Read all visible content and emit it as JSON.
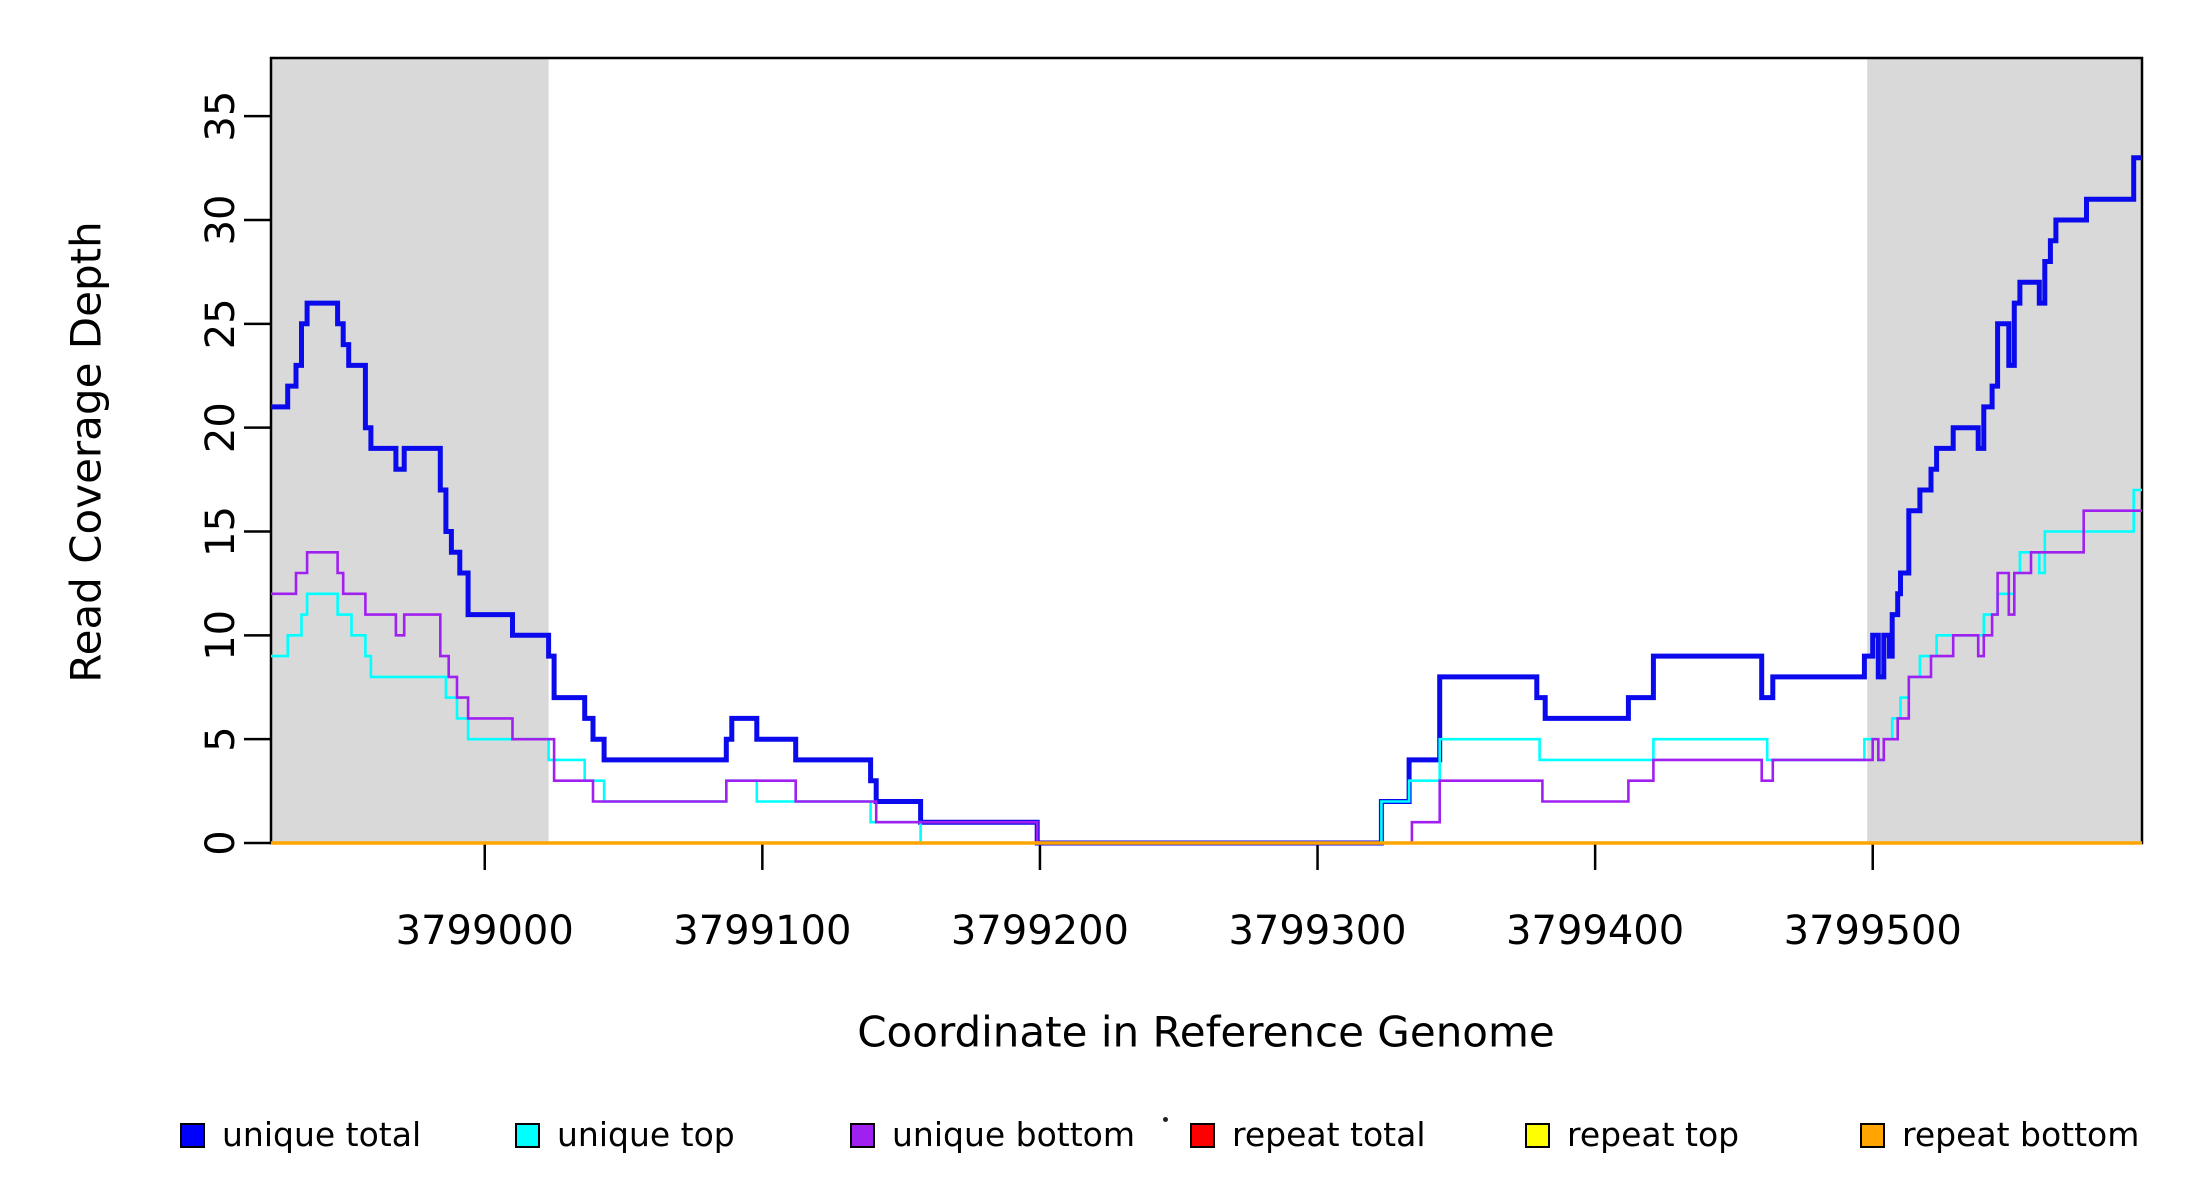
{
  "colors": {
    "background": "#FFFFFF",
    "shaded_region": "#D9D9D9",
    "axis": "#000000"
  },
  "chart_data": {
    "type": "line",
    "subtype": "step",
    "title": "",
    "xlabel": "Coordinate in Reference Genome",
    "ylabel": "Read Coverage Depth",
    "xlim": [
      3798923,
      3799597
    ],
    "ylim": [
      0,
      37.8
    ],
    "grid": false,
    "legend_position": "bottom",
    "x_ticks": [
      {
        "value": 3799000,
        "label": "3799000"
      },
      {
        "value": 3799100,
        "label": "3799100"
      },
      {
        "value": 3799200,
        "label": "3799200"
      },
      {
        "value": 3799300,
        "label": "3799300"
      },
      {
        "value": 3799400,
        "label": "3799400"
      },
      {
        "value": 3799500,
        "label": "3799500"
      }
    ],
    "y_ticks": [
      {
        "value": 0,
        "label": "0"
      },
      {
        "value": 5,
        "label": "5"
      },
      {
        "value": 10,
        "label": "10"
      },
      {
        "value": 15,
        "label": "15"
      },
      {
        "value": 20,
        "label": "20"
      },
      {
        "value": 25,
        "label": "25"
      },
      {
        "value": 30,
        "label": "30"
      },
      {
        "value": 35,
        "label": "35"
      }
    ],
    "shaded_regions": [
      {
        "x0": 3798923,
        "x1": 3799023
      },
      {
        "x0": 3799498,
        "x1": 3799597
      }
    ],
    "series": [
      {
        "name": "unique total",
        "color": "#0A0AEC",
        "line_width": 5,
        "points": [
          [
            3798923,
            21
          ],
          [
            3798929,
            22
          ],
          [
            3798932,
            23
          ],
          [
            3798934,
            25
          ],
          [
            3798936,
            26
          ],
          [
            3798947,
            25
          ],
          [
            3798949,
            24
          ],
          [
            3798951,
            23
          ],
          [
            3798957,
            20
          ],
          [
            3798959,
            19
          ],
          [
            3798968,
            18
          ],
          [
            3798971,
            19
          ],
          [
            3798984,
            17
          ],
          [
            3798986,
            15
          ],
          [
            3798988,
            14
          ],
          [
            3798991,
            13
          ],
          [
            3798994,
            11
          ],
          [
            3799010,
            10
          ],
          [
            3799023,
            9
          ],
          [
            3799025,
            7
          ],
          [
            3799036,
            6
          ],
          [
            3799039,
            5
          ],
          [
            3799043,
            4
          ],
          [
            3799087,
            5
          ],
          [
            3799089,
            6
          ],
          [
            3799098,
            5
          ],
          [
            3799112,
            4
          ],
          [
            3799139,
            3
          ],
          [
            3799141,
            2
          ],
          [
            3799157,
            1
          ],
          [
            3799199,
            0
          ],
          [
            3799323,
            2
          ],
          [
            3799333,
            4
          ],
          [
            3799344,
            8
          ],
          [
            3799379,
            7
          ],
          [
            3799382,
            6
          ],
          [
            3799412,
            7
          ],
          [
            3799421,
            9
          ],
          [
            3799460,
            7
          ],
          [
            3799464,
            8
          ],
          [
            3799497,
            9
          ],
          [
            3799500,
            10
          ],
          [
            3799502,
            8
          ],
          [
            3799504,
            10
          ],
          [
            3799506,
            9
          ],
          [
            3799507,
            11
          ],
          [
            3799509,
            12
          ],
          [
            3799510,
            13
          ],
          [
            3799513,
            16
          ],
          [
            3799517,
            17
          ],
          [
            3799521,
            18
          ],
          [
            3799523,
            19
          ],
          [
            3799529,
            20
          ],
          [
            3799538,
            19
          ],
          [
            3799540,
            21
          ],
          [
            3799543,
            22
          ],
          [
            3799545,
            25
          ],
          [
            3799549,
            23
          ],
          [
            3799551,
            26
          ],
          [
            3799553,
            27
          ],
          [
            3799560,
            26
          ],
          [
            3799562,
            28
          ],
          [
            3799564,
            29
          ],
          [
            3799566,
            30
          ],
          [
            3799577,
            31
          ],
          [
            3799594,
            33
          ],
          [
            3799597,
            33
          ]
        ]
      },
      {
        "name": "unique top",
        "color": "#00FFFF",
        "line_width": 2.6,
        "points": [
          [
            3798923,
            9
          ],
          [
            3798929,
            10
          ],
          [
            3798934,
            11
          ],
          [
            3798936,
            12
          ],
          [
            3798947,
            11
          ],
          [
            3798952,
            10
          ],
          [
            3798957,
            9
          ],
          [
            3798959,
            8
          ],
          [
            3798986,
            7
          ],
          [
            3798990,
            6
          ],
          [
            3798994,
            5
          ],
          [
            3799023,
            4
          ],
          [
            3799036,
            3
          ],
          [
            3799043,
            2
          ],
          [
            3799087,
            3
          ],
          [
            3799098,
            2
          ],
          [
            3799139,
            1
          ],
          [
            3799157,
            0
          ],
          [
            3799323,
            2
          ],
          [
            3799333,
            3
          ],
          [
            3799344,
            5
          ],
          [
            3799380,
            4
          ],
          [
            3799421,
            5
          ],
          [
            3799462,
            4
          ],
          [
            3799497,
            5
          ],
          [
            3799502,
            4
          ],
          [
            3799504,
            5
          ],
          [
            3799507,
            6
          ],
          [
            3799510,
            7
          ],
          [
            3799513,
            8
          ],
          [
            3799517,
            9
          ],
          [
            3799523,
            10
          ],
          [
            3799540,
            11
          ],
          [
            3799545,
            12
          ],
          [
            3799551,
            13
          ],
          [
            3799553,
            14
          ],
          [
            3799560,
            13
          ],
          [
            3799562,
            15
          ],
          [
            3799594,
            17
          ],
          [
            3799597,
            17
          ]
        ]
      },
      {
        "name": "unique bottom",
        "color": "#A020F0",
        "line_width": 2.6,
        "points": [
          [
            3798923,
            12
          ],
          [
            3798932,
            13
          ],
          [
            3798936,
            14
          ],
          [
            3798947,
            13
          ],
          [
            3798949,
            12
          ],
          [
            3798957,
            11
          ],
          [
            3798968,
            10
          ],
          [
            3798971,
            11
          ],
          [
            3798984,
            9
          ],
          [
            3798987,
            8
          ],
          [
            3798990,
            7
          ],
          [
            3798994,
            6
          ],
          [
            3799010,
            5
          ],
          [
            3799025,
            3
          ],
          [
            3799039,
            2
          ],
          [
            3799087,
            3
          ],
          [
            3799112,
            2
          ],
          [
            3799141,
            1
          ],
          [
            3799199,
            0
          ],
          [
            3799334,
            1
          ],
          [
            3799344,
            3
          ],
          [
            3799381,
            2
          ],
          [
            3799412,
            3
          ],
          [
            3799421,
            4
          ],
          [
            3799460,
            3
          ],
          [
            3799464,
            4
          ],
          [
            3799500,
            5
          ],
          [
            3799502,
            4
          ],
          [
            3799504,
            5
          ],
          [
            3799509,
            6
          ],
          [
            3799513,
            8
          ],
          [
            3799521,
            9
          ],
          [
            3799529,
            10
          ],
          [
            3799538,
            9
          ],
          [
            3799540,
            10
          ],
          [
            3799543,
            11
          ],
          [
            3799545,
            13
          ],
          [
            3799549,
            11
          ],
          [
            3799551,
            13
          ],
          [
            3799557,
            14
          ],
          [
            3799576,
            16
          ],
          [
            3799597,
            16
          ]
        ]
      },
      {
        "name": "repeat total",
        "color": "#FF0000",
        "line_width": 2.6,
        "points": [
          [
            3798923,
            0
          ],
          [
            3799597,
            0
          ]
        ]
      },
      {
        "name": "repeat top",
        "color": "#FFFF00",
        "line_width": 2.6,
        "points": [
          [
            3798923,
            0
          ],
          [
            3799597,
            0
          ]
        ]
      },
      {
        "name": "repeat bottom",
        "color": "#FFA500",
        "line_width": 3.6,
        "points": [
          [
            3798923,
            0
          ],
          [
            3799597,
            0
          ]
        ]
      }
    ],
    "legend": {
      "items": [
        {
          "label": "unique total",
          "swatch": "#0000FF"
        },
        {
          "label": "unique top",
          "swatch": "#00FFFF"
        },
        {
          "label": "unique bottom",
          "swatch": "#A020F0"
        },
        {
          "label": "repeat total",
          "swatch": "#FF0000"
        },
        {
          "label": "repeat top",
          "swatch": "#FFFF00"
        },
        {
          "label": "repeat bottom",
          "swatch": "#FFA500"
        }
      ]
    }
  }
}
